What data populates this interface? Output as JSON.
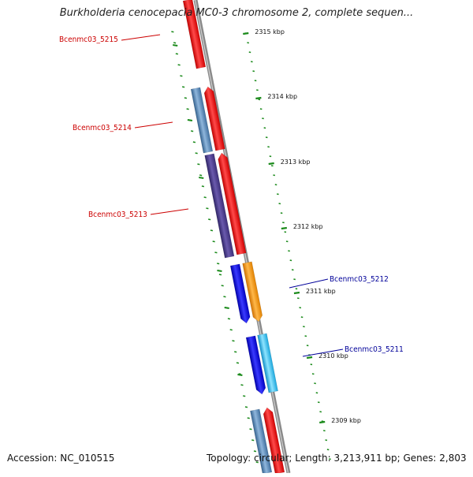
{
  "header": {
    "title": "Burkholderia cenocepacia MC0-3 chromosome 2, complete sequen..."
  },
  "footer": {
    "accession": "Accession: NC_010515",
    "topology": "Topology: circular; Length: 3,213,911 bp; Genes: 2,803"
  },
  "map": {
    "ticks": [
      {
        "label": "2315 kbp"
      },
      {
        "label": "2314 kbp"
      },
      {
        "label": "2313 kbp"
      },
      {
        "label": "2312 kbp"
      },
      {
        "label": "2311 kbp"
      },
      {
        "label": "2310 kbp"
      },
      {
        "label": "2309 kbp"
      }
    ],
    "genes": [
      {
        "label": "Bcenmc03_5215",
        "color": "#cc0000"
      },
      {
        "label": "Bcenmc03_5214",
        "color": "#cc0000"
      },
      {
        "label": "Bcenmc03_5213",
        "color": "#cc0000"
      },
      {
        "label": "Bcenmc03_5212",
        "color": "#000099"
      },
      {
        "label": "Bcenmc03_5211",
        "color": "#000099"
      }
    ],
    "colors": {
      "backbone": "#8a8a8a",
      "tick": "#1a8a1a",
      "red_feature": "#ff1a1a",
      "blue_feature": "#0a0aee",
      "steelblue_feature": "#4a7fb8",
      "purple_feature": "#4a3a8c",
      "orange_feature": "#ff9900",
      "cyan_feature": "#22bbee"
    }
  }
}
